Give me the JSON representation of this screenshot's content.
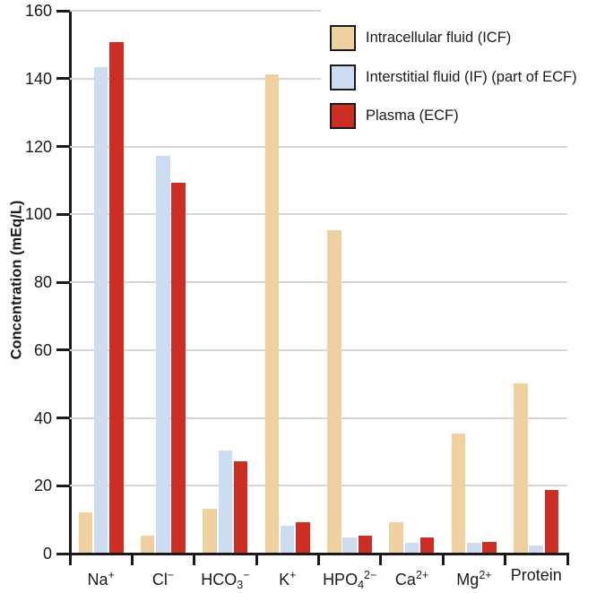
{
  "figure": {
    "background": "#ffffff"
  },
  "chart_data": {
    "type": "bar",
    "title": "",
    "xlabel": "",
    "ylabel": "Concentration (mEq/L)",
    "ylim": [
      0,
      160
    ],
    "yticks": [
      0,
      20,
      40,
      60,
      80,
      100,
      120,
      140,
      160
    ],
    "grid": "horizontal",
    "legend_position": "top-right",
    "categories": [
      "Na⁺",
      "Cl⁻",
      "HCO₃⁻",
      "K⁺",
      "HPO₄²⁻",
      "Ca²⁺",
      "Mg²⁺",
      "Protein"
    ],
    "category_parts": [
      {
        "key": "na",
        "base": "Na",
        "sup": "+"
      },
      {
        "key": "cl",
        "base": "Cl",
        "sup": "−"
      },
      {
        "key": "hco3",
        "base": "HCO",
        "sub": "3",
        "sup": "−"
      },
      {
        "key": "k",
        "base": "K",
        "sup": "+"
      },
      {
        "key": "hpo4",
        "base": "HPO",
        "sub": "4",
        "sup": "2−"
      },
      {
        "key": "ca",
        "base": "Ca",
        "sup": "2+"
      },
      {
        "key": "mg",
        "base": "Mg",
        "sup": "2+"
      },
      {
        "key": "protein",
        "base": "Protein"
      }
    ],
    "series": [
      {
        "key": "icf",
        "name": "Intracellular fluid (ICF)",
        "color": "#efd09f",
        "values": [
          12,
          5,
          13,
          141,
          95,
          9,
          35,
          50
        ]
      },
      {
        "key": "if",
        "name": "Interstitial fluid (IF) (part of ECF)",
        "color": "#cdddf1",
        "values": [
          143,
          117,
          30,
          8,
          4.5,
          3,
          3,
          2
        ]
      },
      {
        "key": "plasma",
        "name": "Plasma (ECF)",
        "color": "#cd2e24",
        "values": [
          150.5,
          109,
          27,
          9,
          5,
          4.5,
          3.2,
          18.5
        ]
      }
    ]
  },
  "colors": {
    "axis": "#1a1a1a",
    "gridline": "#d7d7d7",
    "text": "#1a1a1a",
    "legend_border": "#1a1a1a"
  }
}
